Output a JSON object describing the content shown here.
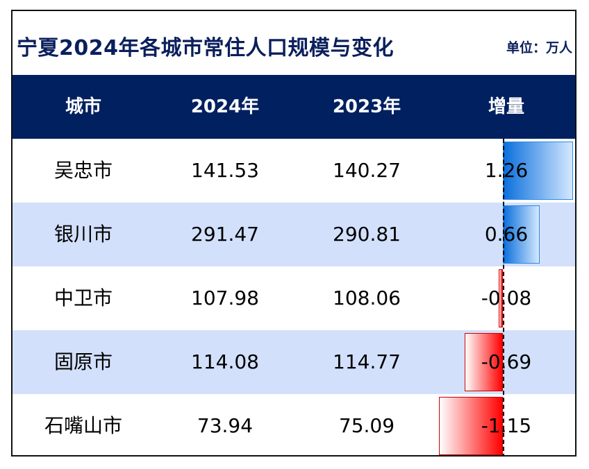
{
  "title": "宁夏2024年各城市常住人口规模与变化",
  "unit": "单位：万人",
  "header": {
    "city": "城市",
    "y2024": "2024年",
    "y2023": "2023年",
    "change": "增量"
  },
  "rows": [
    {
      "city": "吴忠市",
      "v2024": "141.53",
      "v2023": "140.27",
      "change": "1.26"
    },
    {
      "city": "银川市",
      "v2024": "291.47",
      "v2023": "290.81",
      "change": "0.66"
    },
    {
      "city": "中卫市",
      "v2024": "107.98",
      "v2023": "108.06",
      "change": "-0.08"
    },
    {
      "city": "固原市",
      "v2024": "114.08",
      "v2023": "114.77",
      "change": "-0.69"
    },
    {
      "city": "石嘴山市",
      "v2024": "73.94",
      "v2023": "75.09",
      "change": "-1.15"
    }
  ],
  "colors": {
    "header_bg": "#002060",
    "title": "#0a1f5c",
    "row_alt": "#d2e0fb",
    "positive_bar": "#0a6fdc",
    "negative_bar": "#ff0000"
  },
  "chart_data": {
    "type": "table",
    "title": "宁夏2024年各城市常住人口规模与变化",
    "unit": "单位：万人",
    "columns": [
      "城市",
      "2024年",
      "2023年",
      "增量"
    ],
    "categories": [
      "吴忠市",
      "银川市",
      "中卫市",
      "固原市",
      "石嘴山市"
    ],
    "series": [
      {
        "name": "2024年",
        "values": [
          141.53,
          291.47,
          107.98,
          114.08,
          73.94
        ]
      },
      {
        "name": "2023年",
        "values": [
          140.27,
          290.81,
          108.06,
          114.77,
          75.09
        ]
      },
      {
        "name": "增量",
        "values": [
          1.26,
          0.66,
          -0.08,
          -0.69,
          -1.15
        ]
      }
    ]
  }
}
